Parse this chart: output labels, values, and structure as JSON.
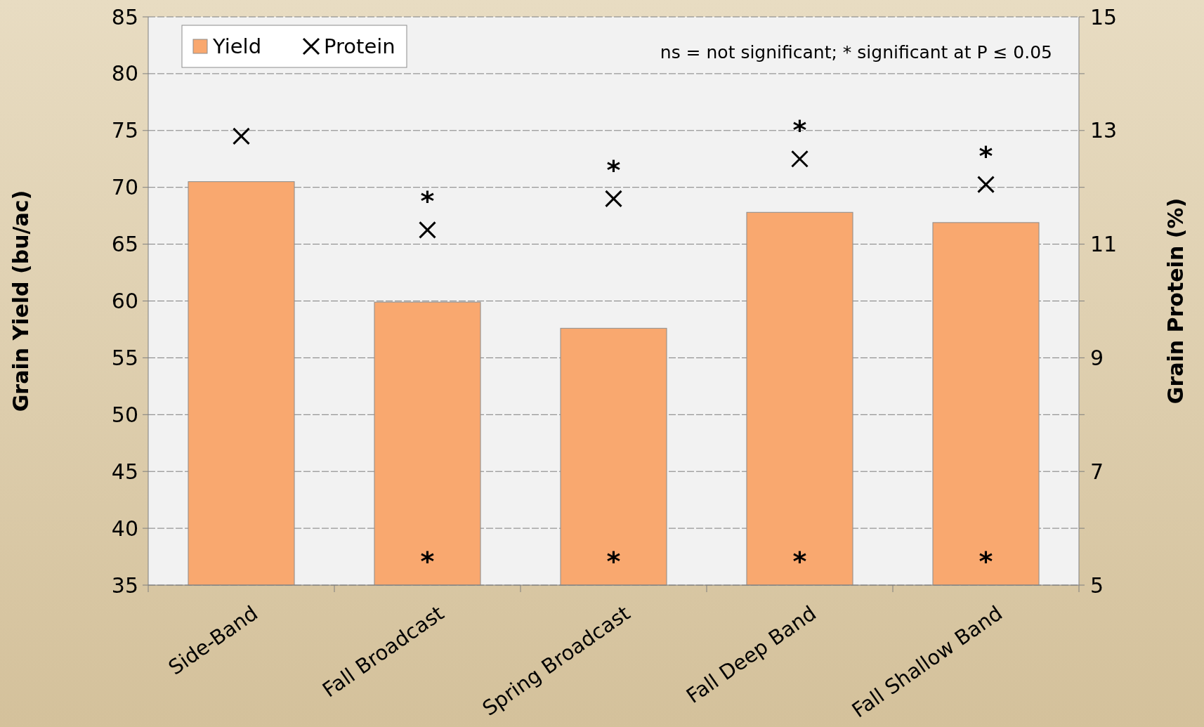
{
  "chart_data": {
    "type": "bar",
    "categories": [
      "Side-Band",
      "Fall Broadcast",
      "Spring Broadcast",
      "Fall Deep Band",
      "Fall Shallow Band"
    ],
    "series": [
      {
        "name": "Yield",
        "type": "bar",
        "color": "#f9a86f",
        "values": [
          70.5,
          59.9,
          57.6,
          67.8,
          66.9
        ],
        "value_labels": [
          null,
          "*",
          "*",
          "*",
          "*"
        ]
      },
      {
        "name": "Protein",
        "type": "scatter",
        "axis": "y2",
        "color": "#000000",
        "marker": "cross",
        "values": [
          12.9,
          11.25,
          11.8,
          12.5,
          12.05
        ],
        "value_labels": [
          null,
          "*",
          "*",
          "*",
          "*"
        ]
      }
    ],
    "ylabel": "Grain Yield (bu/ac)",
    "y2label": "Grain Protein (%)",
    "ylim": [
      35,
      85
    ],
    "yticks": [
      35,
      40,
      45,
      50,
      55,
      60,
      65,
      70,
      75,
      80,
      85
    ],
    "y2lim": [
      5,
      15
    ],
    "y2ticks": [
      5,
      {
        "value": 6,
        "label": null
      },
      7,
      {
        "value": 8,
        "label": null
      },
      9,
      {
        "value": 10,
        "label": null
      },
      11,
      {
        "value": 12,
        "label": null
      },
      13,
      {
        "value": 14,
        "label": null
      },
      15
    ],
    "grid": "y",
    "legend": "top left",
    "annotations": [
      "ns = not significant; * significant at P ≤ 0.05"
    ]
  }
}
